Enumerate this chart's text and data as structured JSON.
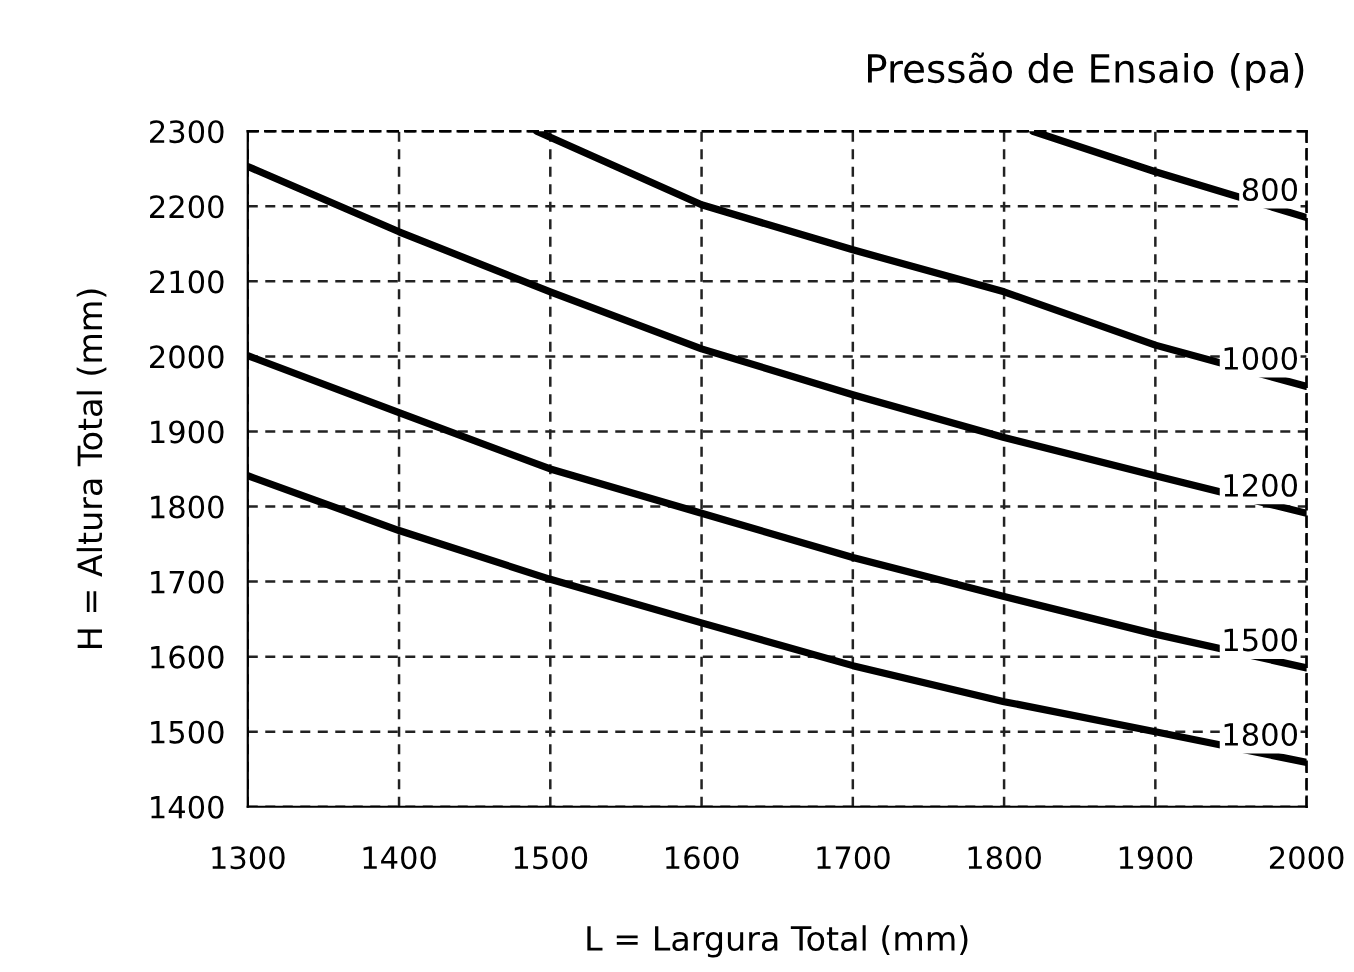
{
  "chart_data": {
    "type": "line",
    "xlabel": "L = Largura Total (mm)",
    "ylabel": "H = Altura Total (mm)",
    "annotations": [
      "Pressão de Ensaio (pa)"
    ],
    "xlim": [
      1300,
      2000
    ],
    "xticks": [
      1300,
      1400,
      1500,
      1600,
      1700,
      1800,
      1900,
      2000
    ],
    "ylim": [
      1400,
      2300
    ],
    "yticks": [
      1400,
      1500,
      1600,
      1700,
      1800,
      1900,
      2000,
      2100,
      2200,
      2300
    ],
    "grid": true,
    "line_style": "solid",
    "marker": "none",
    "legend": false,
    "series": [
      {
        "name": "800",
        "color": "#000000",
        "x": [
          1819,
          1900,
          2000
        ],
        "values": [
          2300,
          2246,
          2185
        ]
      },
      {
        "name": "1000",
        "color": "#000000",
        "x": [
          1491,
          1600,
          1700,
          1800,
          1900,
          2000
        ],
        "values": [
          2300,
          2202,
          2142,
          2086,
          2015,
          1960
        ]
      },
      {
        "name": "1200",
        "color": "#000000",
        "x": [
          1300,
          1400,
          1500,
          1600,
          1700,
          1800,
          1900,
          2000
        ],
        "values": [
          2253,
          2166,
          2086,
          2010,
          1949,
          1892,
          1841,
          1791
        ]
      },
      {
        "name": "1500",
        "color": "#000000",
        "x": [
          1300,
          1400,
          1500,
          1600,
          1700,
          1800,
          1900,
          2000
        ],
        "values": [
          2001,
          1925,
          1850,
          1791,
          1732,
          1680,
          1630,
          1585
        ]
      },
      {
        "name": "1800",
        "color": "#000000",
        "x": [
          1300,
          1400,
          1500,
          1600,
          1700,
          1800,
          1900,
          2000
        ],
        "values": [
          1841,
          1768,
          1703,
          1645,
          1588,
          1540,
          1500,
          1459
        ]
      }
    ]
  }
}
